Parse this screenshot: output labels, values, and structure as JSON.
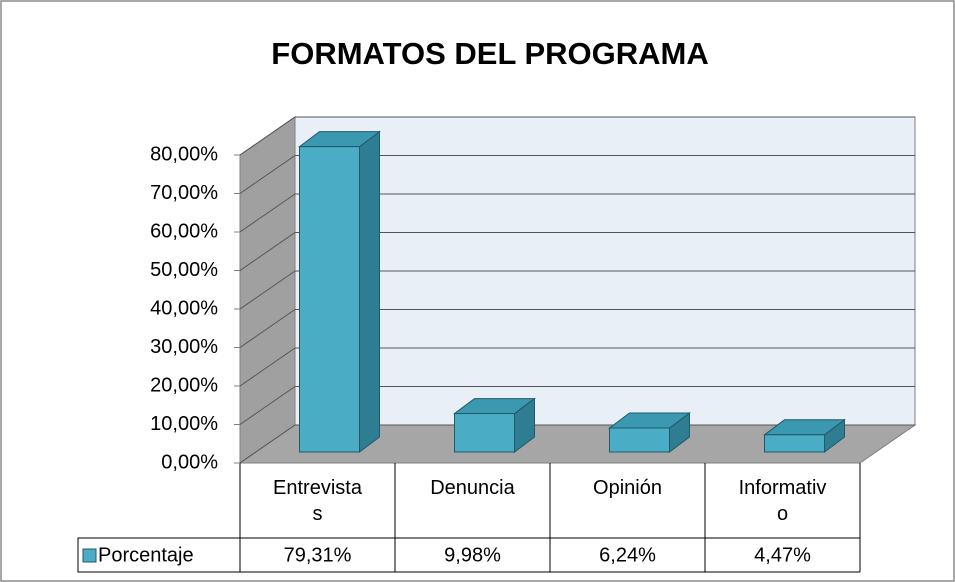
{
  "chart_data": {
    "type": "bar3d",
    "title": "FORMATOS DEL PROGRAMA",
    "categories": [
      "Entrevistas",
      "Denuncia",
      "Opinión",
      "Informativo"
    ],
    "series": [
      {
        "name": "Porcentaje",
        "color": "#4bacc6",
        "values": [
          79.31,
          9.98,
          6.24,
          4.47
        ],
        "value_labels": [
          "79,31%",
          "9,98%",
          "6,24%",
          "4,47%"
        ]
      }
    ],
    "ylim": [
      0,
      80
    ],
    "yticks": [
      {
        "value": 0,
        "label": "0,00%"
      },
      {
        "value": 10,
        "label": "10,00%"
      },
      {
        "value": 20,
        "label": "20,00%"
      },
      {
        "value": 30,
        "label": "30,00%"
      },
      {
        "value": 40,
        "label": "40,00%"
      },
      {
        "value": 50,
        "label": "50,00%"
      },
      {
        "value": 60,
        "label": "60,00%"
      },
      {
        "value": 70,
        "label": "70,00%"
      },
      {
        "value": 80,
        "label": "80,00%"
      }
    ],
    "grid": true,
    "data_table": true
  }
}
